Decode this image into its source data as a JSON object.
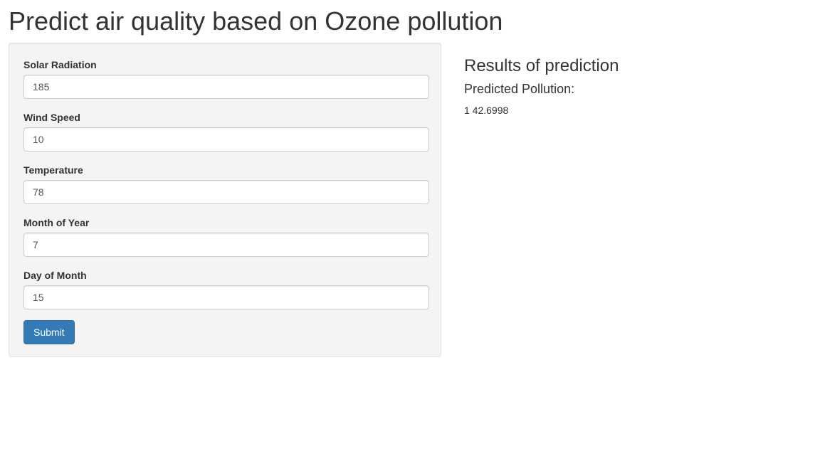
{
  "page": {
    "title": "Predict air quality based on Ozone pollution"
  },
  "form": {
    "fields": [
      {
        "label": "Solar Radiation",
        "value": "185"
      },
      {
        "label": "Wind Speed",
        "value": "10"
      },
      {
        "label": "Temperature",
        "value": "78"
      },
      {
        "label": "Month of Year",
        "value": "7"
      },
      {
        "label": "Day of Month",
        "value": "15"
      }
    ],
    "submit_label": "Submit"
  },
  "results": {
    "heading": "Results of prediction",
    "subheading": "Predicted Pollution:",
    "output": "1 42.6998"
  },
  "colors": {
    "button_primary": "#337ab7",
    "panel_background": "#f4f4f4",
    "text": "#333333"
  }
}
